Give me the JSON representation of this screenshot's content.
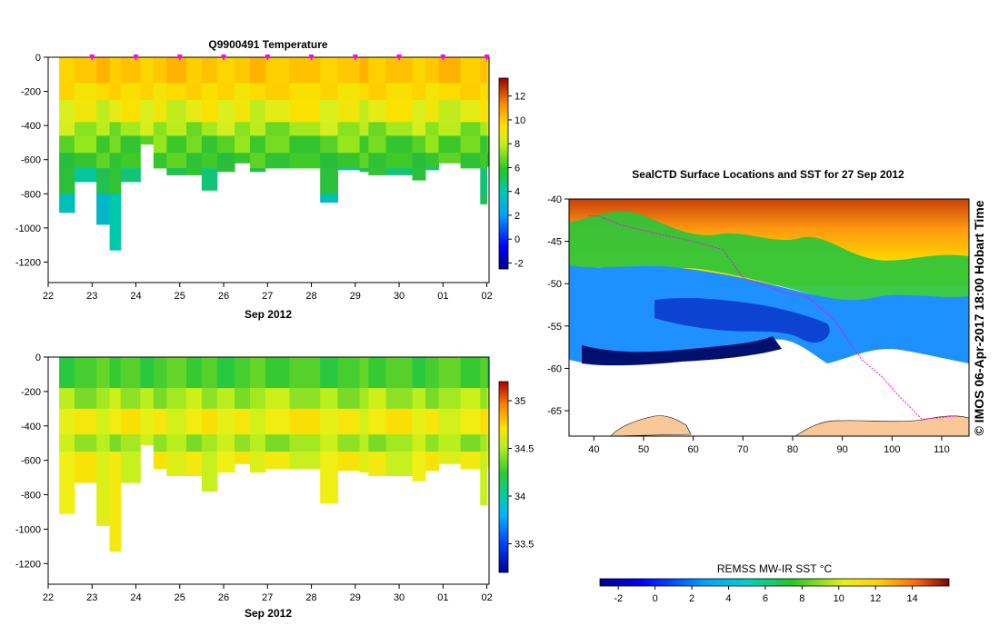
{
  "chart_data": [
    {
      "id": "temperature-section",
      "type": "heatmap",
      "title": "Q9900491  Temperature",
      "xlabel": "Sep 2012",
      "ylabel": "",
      "x_tick_labels": [
        "22",
        "23",
        "24",
        "25",
        "26",
        "27",
        "28",
        "29",
        "30",
        "01",
        "02"
      ],
      "x_range_days": [
        22,
        32.05
      ],
      "ylim": [
        -1320,
        0
      ],
      "y_ticks": [
        0,
        -200,
        -400,
        -600,
        -800,
        -1000,
        -1200
      ],
      "colorbar": {
        "min": -2.5,
        "max": 13.5,
        "ticks": [
          12,
          10,
          8,
          6,
          4,
          2,
          0,
          -2
        ]
      },
      "profile_marker_days": [
        23,
        24,
        25,
        26,
        27,
        28,
        29,
        30,
        31,
        32
      ],
      "profiles_max_depth": [
        [
          22.25,
          -910
        ],
        [
          22.6,
          -730
        ],
        [
          23.1,
          -980
        ],
        [
          23.4,
          -1130
        ],
        [
          23.65,
          -730
        ],
        [
          24.1,
          -510
        ],
        [
          24.4,
          -650
        ],
        [
          24.7,
          -690
        ],
        [
          25.15,
          -690
        ],
        [
          25.5,
          -780
        ],
        [
          25.85,
          -670
        ],
        [
          26.25,
          -620
        ],
        [
          26.6,
          -670
        ],
        [
          26.95,
          -650
        ],
        [
          27.5,
          -650
        ],
        [
          28.2,
          -850
        ],
        [
          28.6,
          -660
        ],
        [
          29.1,
          -670
        ],
        [
          29.3,
          -690
        ],
        [
          29.7,
          -690
        ],
        [
          30.3,
          -720
        ],
        [
          30.6,
          -660
        ],
        [
          30.9,
          -620
        ],
        [
          31.4,
          -650
        ],
        [
          31.85,
          -860
        ],
        [
          32.0,
          -640
        ]
      ],
      "temperature_layers": [
        {
          "depth": [
            0,
            -150
          ],
          "value": 10.5
        },
        {
          "depth": [
            -150,
            -250
          ],
          "value": 9.5
        },
        {
          "depth": [
            -250,
            -380
          ],
          "value": 8.3
        },
        {
          "depth": [
            -380,
            -460
          ],
          "value": 7.2
        },
        {
          "depth": [
            -460,
            -560
          ],
          "value": 6.3
        },
        {
          "depth": [
            -560,
            -650
          ],
          "value": 5.7
        },
        {
          "depth": [
            -650,
            -800
          ],
          "value": 4.8
        },
        {
          "depth": [
            -800,
            -1200
          ],
          "value": 4.0
        }
      ]
    },
    {
      "id": "salinity-section",
      "type": "heatmap",
      "title": "",
      "xlabel": "Sep 2012",
      "ylabel": "",
      "x_tick_labels": [
        "22",
        "23",
        "24",
        "25",
        "26",
        "27",
        "28",
        "29",
        "30",
        "01",
        "02"
      ],
      "x_range_days": [
        22,
        32.05
      ],
      "ylim": [
        -1320,
        0
      ],
      "y_ticks": [
        0,
        -200,
        -400,
        -600,
        -800,
        -1000,
        -1200
      ],
      "colorbar": {
        "min": 33.2,
        "max": 35.2,
        "ticks": [
          "35",
          "34.5",
          "34",
          "33.5"
        ]
      },
      "salinity_layers": [
        {
          "depth": [
            0,
            -180
          ],
          "value": 34.25
        },
        {
          "depth": [
            -180,
            -300
          ],
          "value": 34.45
        },
        {
          "depth": [
            -300,
            -450
          ],
          "value": 34.62
        },
        {
          "depth": [
            -450,
            -550
          ],
          "value": 34.45
        },
        {
          "depth": [
            -550,
            -1200
          ],
          "value": 34.6
        }
      ]
    },
    {
      "id": "sst-map",
      "type": "heatmap",
      "title": "SealCTD Surface Locations and SST for 27 Sep 2012",
      "xlabel": "",
      "ylabel": "",
      "x_tick_labels": [
        "40",
        "50",
        "60",
        "70",
        "80",
        "90",
        "100",
        "110"
      ],
      "y_tick_labels": [
        "-40",
        "-45",
        "-50",
        "-55",
        "-60",
        "-65"
      ],
      "xlim": [
        35,
        115.5
      ],
      "ylim": [
        -68,
        -40
      ],
      "colorbar": {
        "label": "REMSS MW-IR SST °C",
        "min": -3,
        "max": 16,
        "ticks": [
          "-2",
          "0",
          "2",
          "4",
          "6",
          "8",
          "10",
          "12",
          "14"
        ]
      },
      "track_points": [
        [
          39,
          -42
        ],
        [
          41,
          -42
        ],
        [
          45,
          -43
        ],
        [
          52,
          -44
        ],
        [
          60,
          -45
        ],
        [
          66,
          -46
        ],
        [
          70,
          -49.3
        ],
        [
          78,
          -51
        ],
        [
          83,
          -51.6
        ],
        [
          88,
          -54
        ],
        [
          94,
          -59
        ],
        [
          98,
          -61
        ],
        [
          101,
          -63
        ],
        [
          106,
          -66
        ],
        [
          110,
          -65.8
        ],
        [
          113,
          -65.6
        ]
      ]
    }
  ],
  "credit": "© IMOS 06-Apr-2017 18:00 Hobart Time"
}
